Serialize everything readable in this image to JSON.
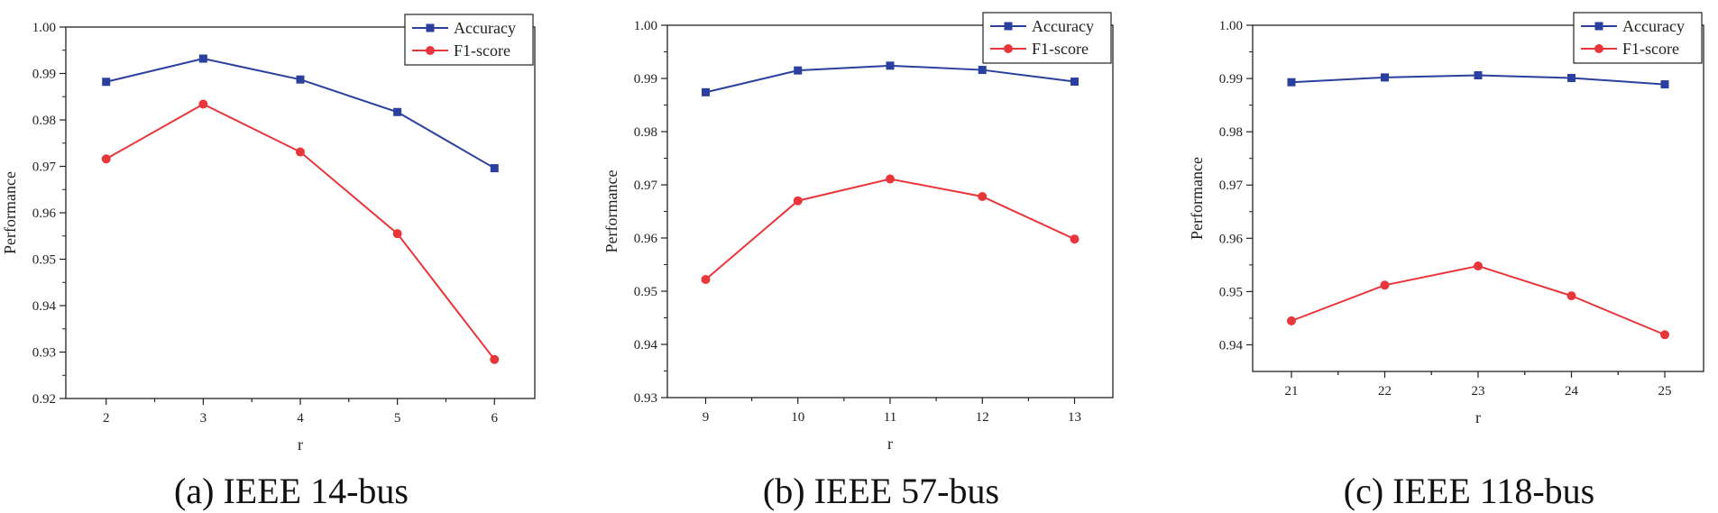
{
  "colors": {
    "accuracy": "#2b3f9e",
    "f1": "#e8363b",
    "axis": "#222222"
  },
  "chart_data": [
    {
      "type": "line",
      "caption": "(a) IEEE 14-bus",
      "xlabel": "r",
      "ylabel": "Performance",
      "x": [
        2,
        3,
        4,
        5,
        6
      ],
      "x_tick_labels": [
        "2",
        "3",
        "4",
        "5",
        "6"
      ],
      "ylim": [
        0.92,
        1.0
      ],
      "y_ticks": [
        "0.92",
        "0.93",
        "0.94",
        "0.95",
        "0.96",
        "0.97",
        "0.98",
        "0.99",
        "1.00"
      ],
      "legend_position": "top-right",
      "series": [
        {
          "name": "Accuracy",
          "marker": "square",
          "values": [
            0.9882,
            0.9932,
            0.9887,
            0.9817,
            0.9696
          ]
        },
        {
          "name": "F1-score",
          "marker": "circle",
          "values": [
            0.9716,
            0.9834,
            0.9731,
            0.9555,
            0.9284
          ]
        }
      ]
    },
    {
      "type": "line",
      "caption": "(b) IEEE 57-bus",
      "xlabel": "r",
      "ylabel": "Performance",
      "x": [
        9,
        10,
        11,
        12,
        13
      ],
      "x_tick_labels": [
        "9",
        "10",
        "11",
        "12",
        "13"
      ],
      "ylim": [
        0.93,
        1.0
      ],
      "y_ticks": [
        "0.93",
        "0.94",
        "0.95",
        "0.96",
        "0.97",
        "0.98",
        "0.99",
        "1.00"
      ],
      "legend_position": "top-right",
      "series": [
        {
          "name": "Accuracy",
          "marker": "square",
          "values": [
            0.9874,
            0.9915,
            0.9924,
            0.9916,
            0.9894
          ]
        },
        {
          "name": "F1-score",
          "marker": "circle",
          "values": [
            0.9522,
            0.967,
            0.9711,
            0.9678,
            0.9598
          ]
        }
      ]
    },
    {
      "type": "line",
      "caption": "(c) IEEE 118-bus",
      "xlabel": "r",
      "ylabel": "Performance",
      "x": [
        21,
        22,
        23,
        24,
        25
      ],
      "x_tick_labels": [
        "21",
        "22",
        "23",
        "24",
        "25"
      ],
      "ylim": [
        0.935,
        1.0
      ],
      "y_ticks": [
        "0.94",
        "0.95",
        "0.96",
        "0.97",
        "0.98",
        "0.99",
        "1.00"
      ],
      "legend_position": "top-right",
      "series": [
        {
          "name": "Accuracy",
          "marker": "square",
          "values": [
            0.9893,
            0.9902,
            0.9906,
            0.9901,
            0.9889
          ]
        },
        {
          "name": "F1-score",
          "marker": "circle",
          "values": [
            0.9445,
            0.9512,
            0.9548,
            0.9492,
            0.9419
          ]
        }
      ]
    }
  ]
}
